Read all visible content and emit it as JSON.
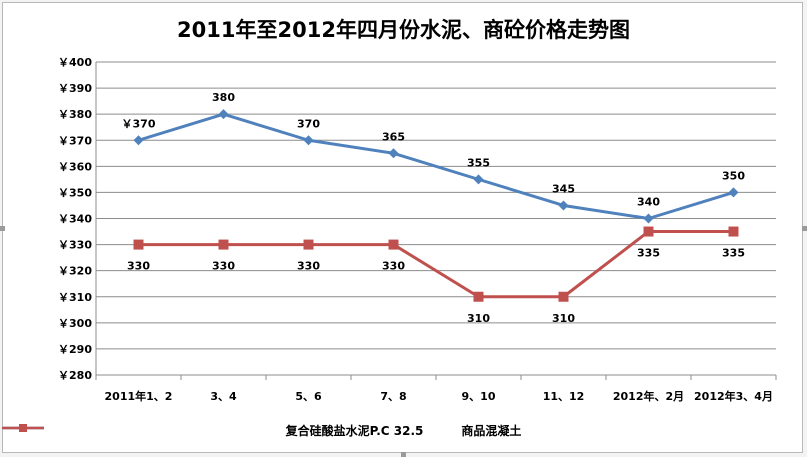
{
  "chart_data": {
    "type": "line",
    "title": "2011年至2012年四月份水泥、商砼价格走势图",
    "categories": [
      "2011年1、2",
      "3、4",
      "5、6",
      "7、8",
      "9、10",
      "11、12",
      "2012年、2月",
      "2012年3、4月"
    ],
    "ylim": [
      280,
      400
    ],
    "ytick_step": 10,
    "ytick_prefix": "￥",
    "grid": true,
    "legend_position": "bottom",
    "series": [
      {
        "name": "复合硅酸盐水泥P.C 32.5",
        "color": "#4f81bd",
        "marker": "diamond",
        "values": [
          370,
          380,
          370,
          365,
          355,
          345,
          340,
          350
        ],
        "labels": [
          "￥370",
          "380",
          "370",
          "365",
          "355",
          "345",
          "340",
          "350"
        ],
        "label_position": "above"
      },
      {
        "name": "商品混凝土",
        "color": "#c0504d",
        "marker": "square",
        "values": [
          330,
          330,
          330,
          330,
          310,
          310,
          335,
          335
        ],
        "labels": [
          "330",
          "330",
          "330",
          "330",
          "310",
          "310",
          "335",
          "335"
        ],
        "label_position": "below"
      }
    ]
  }
}
